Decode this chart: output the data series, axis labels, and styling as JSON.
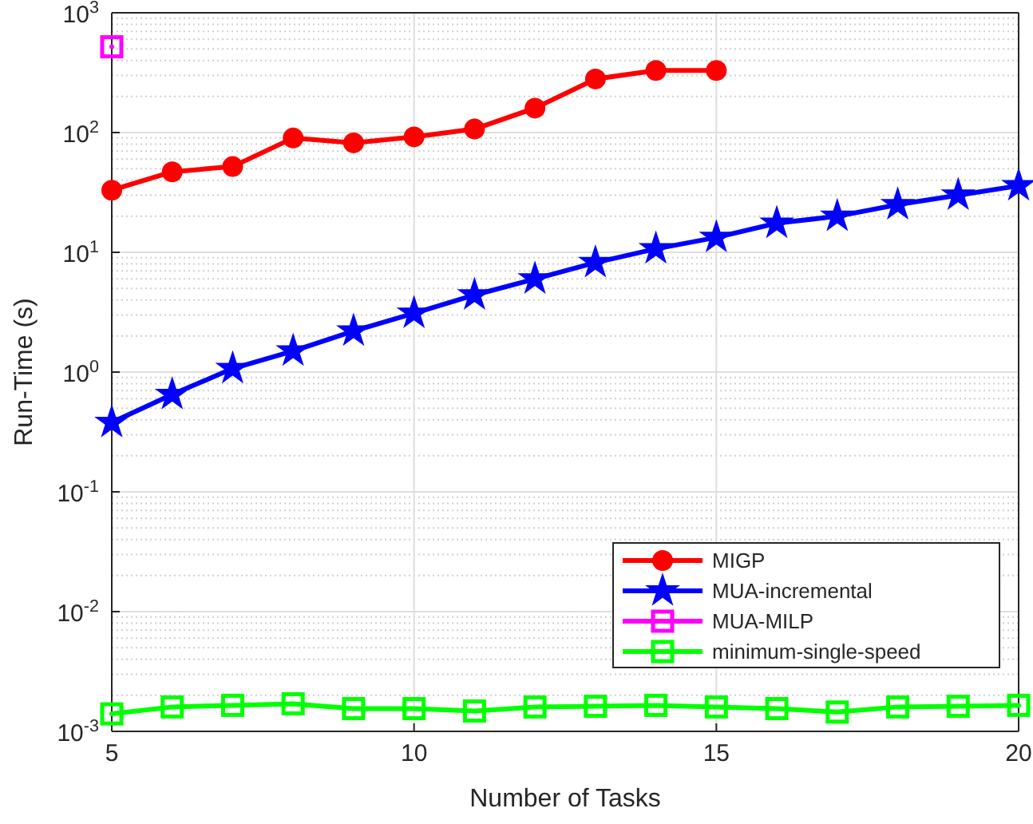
{
  "chart_data": {
    "type": "line",
    "xlabel": "Number of Tasks",
    "ylabel": "Run-Time (s)",
    "log": "y",
    "grid": true,
    "legend": "bottom right",
    "line_style": "solid",
    "xlim": [
      5,
      20
    ],
    "xticks": [
      5,
      10,
      15,
      20
    ],
    "ylim": [
      0.001,
      1000
    ],
    "yticks": [
      {
        "value": 0.001,
        "label": "10$^{-3}$"
      },
      {
        "value": 0.01,
        "label": "10$^{-2}$"
      },
      {
        "value": 0.1,
        "label": "10$^{-1}$"
      },
      {
        "value": 1,
        "label": "10$^{0}$"
      },
      {
        "value": 10,
        "label": "10$^{1}$"
      },
      {
        "value": 100,
        "label": "10$^{2}$"
      },
      {
        "value": 1000,
        "label": "10$^{3}$"
      }
    ],
    "series": [
      {
        "name": "MIGP",
        "color": "#ff0000",
        "marker": "circle",
        "x": [
          5,
          6,
          7,
          8,
          9,
          10,
          11,
          12,
          13,
          14,
          15
        ],
        "values": [
          33,
          47,
          52,
          90,
          82,
          92,
          107,
          160,
          280,
          330,
          330
        ]
      },
      {
        "name": "MUA-incremental",
        "color": "#0000ff",
        "marker": "star",
        "x": [
          5,
          6,
          7,
          8,
          9,
          10,
          11,
          12,
          13,
          14,
          15,
          16,
          17,
          18,
          19,
          20
        ],
        "values": [
          0.38,
          0.65,
          1.07,
          1.5,
          2.2,
          3.1,
          4.4,
          6,
          8.2,
          10.7,
          13.3,
          17.5,
          20,
          25,
          30,
          36
        ]
      },
      {
        "name": "MUA-MILP",
        "color": "#ff00ff",
        "marker": "square",
        "x": [
          5
        ],
        "values": [
          520
        ]
      },
      {
        "name": "minimum-single-speed",
        "color": "#00ff00",
        "marker": "square",
        "x": [
          5,
          6,
          7,
          8,
          9,
          10,
          11,
          12,
          13,
          14,
          15,
          16,
          17,
          18,
          19,
          20
        ],
        "values": [
          0.0014,
          0.0016,
          0.00165,
          0.0017,
          0.00155,
          0.00155,
          0.00148,
          0.0016,
          0.00162,
          0.00165,
          0.0016,
          0.00155,
          0.00145,
          0.0016,
          0.00162,
          0.00165
        ]
      }
    ]
  }
}
